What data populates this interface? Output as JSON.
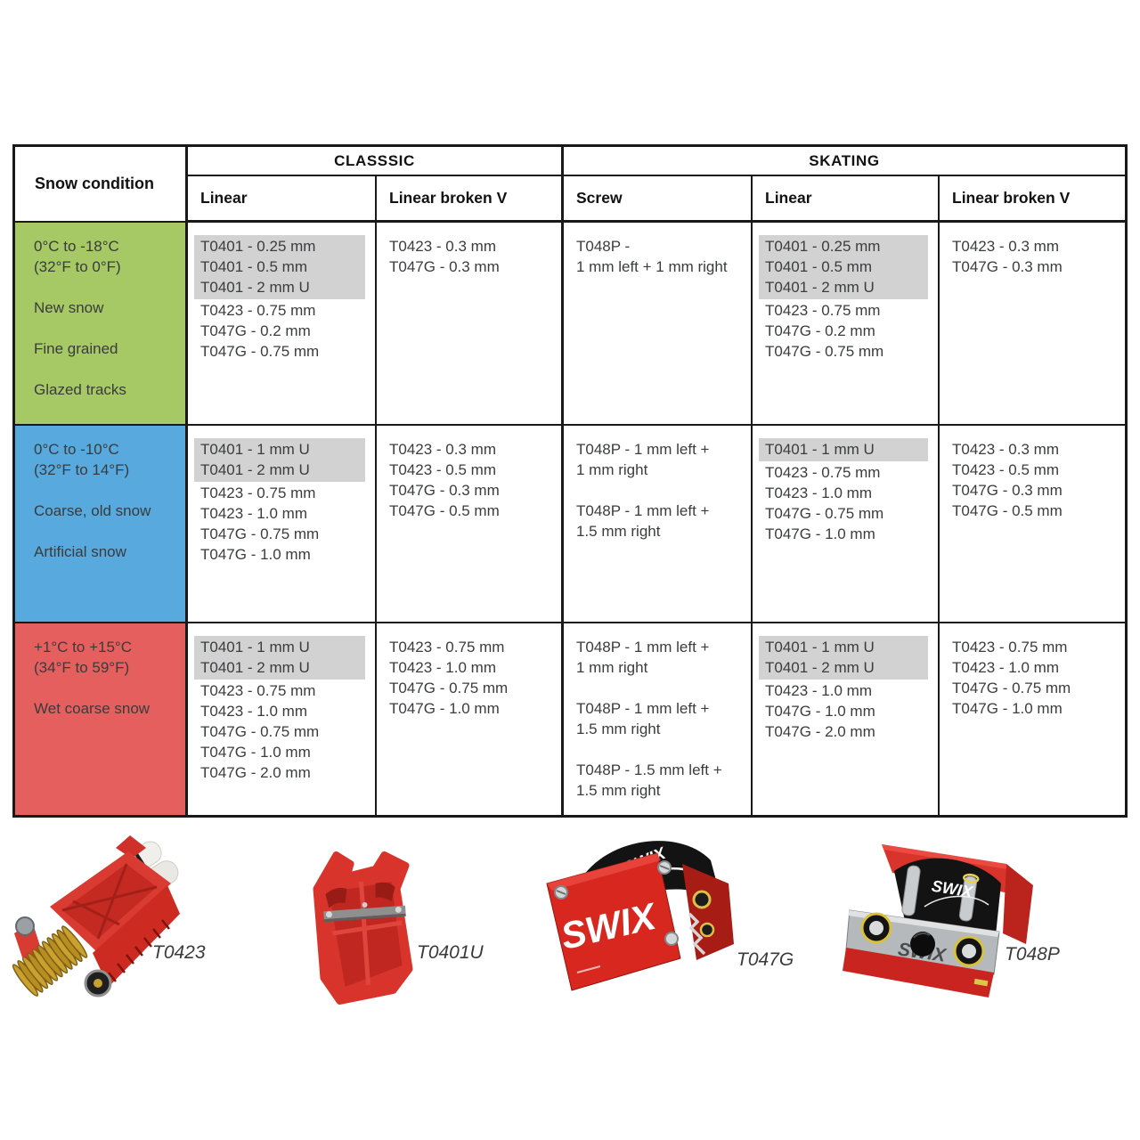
{
  "colors": {
    "green_row": "#a6c966",
    "blue_row": "#58a9dd",
    "red_row": "#e55f5f",
    "highlight": "#d2d2d2",
    "table_border": "#191919",
    "body_text": "#3b3c3d",
    "swix_red": "#d7271f"
  },
  "table": {
    "corner_header": "Snow condition",
    "group_headers": [
      {
        "label": "CLASSSIC"
      },
      {
        "label": "SKATING"
      }
    ],
    "sub_headers": [
      "Linear",
      "Linear broken V",
      "Screw",
      "Linear",
      "Linear broken V"
    ],
    "rows": [
      {
        "bg": "#a6c966",
        "condition": [
          "0°C to -18°C",
          "(32°F to 0°F)",
          "",
          "New snow",
          "",
          "Fine grained",
          "",
          "Glazed tracks"
        ],
        "cells": [
          {
            "hl": 3,
            "items": [
              "T0401 - 0.25 mm",
              "T0401 - 0.5 mm",
              "T0401 - 2 mm U",
              "T0423 - 0.75 mm",
              "T047G - 0.2 mm",
              "T047G - 0.75 mm"
            ]
          },
          {
            "hl": 0,
            "items": [
              "T0423 - 0.3 mm",
              "T047G - 0.3 mm"
            ]
          },
          {
            "hl": 0,
            "items": [
              "T048P -",
              "1 mm left + 1 mm right"
            ]
          },
          {
            "hl": 3,
            "items": [
              "T0401 - 0.25 mm",
              "T0401 - 0.5 mm",
              "T0401 - 2 mm U",
              "T0423 - 0.75 mm",
              "T047G - 0.2 mm",
              "T047G - 0.75 mm"
            ]
          },
          {
            "hl": 0,
            "items": [
              "T0423 - 0.3 mm",
              "T047G - 0.3 mm"
            ]
          }
        ]
      },
      {
        "bg": "#58a9dd",
        "condition": [
          "0°C to -10°C",
          "(32°F to 14°F)",
          "",
          "Coarse, old snow",
          "",
          "Artificial snow"
        ],
        "cells": [
          {
            "hl": 2,
            "items": [
              "T0401 - 1 mm U",
              "T0401 - 2 mm U",
              "T0423 - 0.75 mm",
              "T0423 - 1.0 mm",
              "T047G - 0.75 mm",
              "T047G - 1.0 mm"
            ]
          },
          {
            "hl": 0,
            "items": [
              "T0423 - 0.3 mm",
              "T0423 - 0.5 mm",
              "T047G - 0.3 mm",
              "T047G - 0.5 mm"
            ]
          },
          {
            "hl": 0,
            "items": [
              "T048P - 1 mm left +",
              "1 mm right",
              "",
              "T048P - 1 mm left +",
              "1.5 mm right"
            ]
          },
          {
            "hl": 1,
            "items": [
              "T0401 - 1 mm U",
              "T0423 - 0.75 mm",
              "T0423 - 1.0 mm",
              "T047G - 0.75 mm",
              "T047G - 1.0 mm"
            ]
          },
          {
            "hl": 0,
            "items": [
              "T0423 - 0.3 mm",
              "T0423 - 0.5 mm",
              "T047G - 0.3 mm",
              "T047G - 0.5 mm"
            ]
          }
        ]
      },
      {
        "bg": "#e55f5f",
        "condition": [
          "+1°C to +15°C",
          "(34°F to 59°F)",
          "",
          "Wet coarse snow"
        ],
        "cells": [
          {
            "hl": 2,
            "items": [
              "T0401 - 1 mm U",
              "T0401 - 2 mm U",
              "T0423 - 0.75 mm",
              "T0423 - 1.0 mm",
              "T047G - 0.75 mm",
              "T047G - 1.0 mm",
              "T047G - 2.0 mm"
            ]
          },
          {
            "hl": 0,
            "items": [
              "T0423 - 0.75 mm",
              "T0423 - 1.0 mm",
              "T047G - 0.75 mm",
              "T047G - 1.0 mm"
            ]
          },
          {
            "hl": 0,
            "items": [
              "T048P - 1 mm left +",
              "1 mm right",
              "",
              "T048P - 1 mm left +",
              "1.5 mm right",
              "",
              "T048P - 1.5 mm left +",
              "1.5 mm right"
            ]
          },
          {
            "hl": 2,
            "items": [
              "T0401 - 1 mm U",
              "T0401 - 2 mm U",
              "T0423 - 1.0 mm",
              "T047G - 1.0 mm",
              "T047G - 2.0 mm"
            ]
          },
          {
            "hl": 0,
            "items": [
              "T0423 - 0.75 mm",
              "T0423 - 1.0 mm",
              "T047G - 0.75 mm",
              "T047G - 1.0 mm"
            ]
          }
        ]
      }
    ]
  },
  "products": [
    {
      "label": "T0423"
    },
    {
      "label": "T0401U"
    },
    {
      "label": "T047G",
      "logo_band": "SWIX",
      "logo_plate": "SWIX"
    },
    {
      "label": "T048P",
      "logo_band": "SWIX",
      "logo_plate": "SWIX"
    }
  ]
}
